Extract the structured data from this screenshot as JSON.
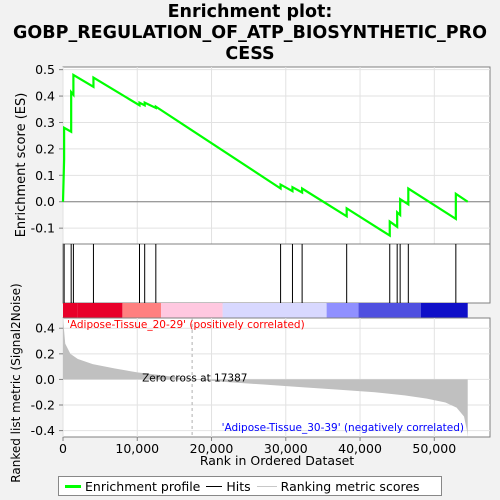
{
  "title_lines": [
    "Enrichment plot:",
    "GOBP_REGULATION_OF_ATP_BIOSYNTHETIC_PRO",
    "CESS"
  ],
  "colors": {
    "enrichment_line": "#00ff00",
    "hits": "#000000",
    "ranking_fill": "#c0c0c0",
    "heat_pos_strong": "#e8002a",
    "heat_pos_mid": "#ff8080",
    "heat_pos_light": "#ffc8e0",
    "heat_neutral": "#d8d8ff",
    "heat_neg_light": "#9090ff",
    "heat_neg_mid": "#5050e0",
    "heat_neg_strong": "#1010c8",
    "annotation_pos": "#ff0000",
    "annotation_neg": "#0000ff"
  },
  "chart_data": {
    "type": "line",
    "x_label": "Rank in Ordered Dataset",
    "es_ylabel": "Enrichment score (ES)",
    "metric_ylabel": "Ranked list metric (Signal2Noise)",
    "xlim": [
      0,
      57500
    ],
    "x_ticks": [
      0,
      10000,
      20000,
      30000,
      40000,
      50000
    ],
    "x_tick_labels": [
      "0",
      "10,000",
      "20,000",
      "30,000",
      "40,000",
      "50,000"
    ],
    "es_ylim": [
      -0.16,
      0.51
    ],
    "es_ticks": [
      -0.1,
      0.0,
      0.1,
      0.2,
      0.3,
      0.4,
      0.5
    ],
    "es_tick_labels": [
      "-0.1",
      "0.0",
      "0.1",
      "0.2",
      "0.3",
      "0.4",
      "0.5"
    ],
    "metric_ylim": [
      -0.45,
      0.48
    ],
    "metric_ticks": [
      -0.4,
      -0.2,
      0.0,
      0.2,
      0.4
    ],
    "metric_tick_labels": [
      "-0.4",
      "-0.2",
      "0.0",
      "0.2",
      "0.4"
    ],
    "hits": [
      150,
      1100,
      1400,
      4100,
      10300,
      11000,
      12500,
      29300,
      30900,
      32200,
      38200,
      44000,
      45000,
      45400,
      46500,
      52900
    ],
    "es_curve": [
      [
        0,
        0.0
      ],
      [
        150,
        0.16
      ],
      [
        150,
        0.28
      ],
      [
        1100,
        0.265
      ],
      [
        1100,
        0.415
      ],
      [
        1400,
        0.405
      ],
      [
        1400,
        0.48
      ],
      [
        4100,
        0.435
      ],
      [
        4100,
        0.47
      ],
      [
        10300,
        0.365
      ],
      [
        10300,
        0.375
      ],
      [
        11000,
        0.365
      ],
      [
        11000,
        0.375
      ],
      [
        12500,
        0.355
      ],
      [
        12500,
        0.36
      ],
      [
        29300,
        0.05
      ],
      [
        29300,
        0.065
      ],
      [
        30900,
        0.04
      ],
      [
        30900,
        0.055
      ],
      [
        32200,
        0.035
      ],
      [
        32200,
        0.05
      ],
      [
        38200,
        -0.055
      ],
      [
        38200,
        -0.025
      ],
      [
        44000,
        -0.128
      ],
      [
        44000,
        -0.075
      ],
      [
        45000,
        -0.095
      ],
      [
        45000,
        -0.04
      ],
      [
        45400,
        -0.05
      ],
      [
        45400,
        0.01
      ],
      [
        46500,
        -0.01
      ],
      [
        46500,
        0.05
      ],
      [
        52900,
        -0.065
      ],
      [
        52900,
        0.03
      ],
      [
        54500,
        0.0
      ]
    ],
    "metric_curve": [
      [
        0,
        0.48
      ],
      [
        300,
        0.28
      ],
      [
        1000,
        0.2
      ],
      [
        2000,
        0.16
      ],
      [
        4000,
        0.12
      ],
      [
        7000,
        0.085
      ],
      [
        10000,
        0.055
      ],
      [
        13000,
        0.035
      ],
      [
        17387,
        0.0
      ],
      [
        22000,
        -0.02
      ],
      [
        27000,
        -0.04
      ],
      [
        32000,
        -0.06
      ],
      [
        37000,
        -0.08
      ],
      [
        42000,
        -0.1
      ],
      [
        46000,
        -0.125
      ],
      [
        49000,
        -0.15
      ],
      [
        51500,
        -0.18
      ],
      [
        53000,
        -0.22
      ],
      [
        54000,
        -0.29
      ],
      [
        54400,
        -0.4
      ],
      [
        54500,
        -0.45
      ]
    ],
    "zero_cross": 17387,
    "zero_cross_label": "Zero cross at 17387",
    "pos_label": "'Adipose-Tissue_20-29' (positively correlated)",
    "neg_label": "'Adipose-Tissue_30-39' (negatively correlated)",
    "heat_segments": [
      {
        "x0": 0,
        "x1": 2000,
        "tone": "heat_pos_strong"
      },
      {
        "x0": 2000,
        "x1": 8000,
        "tone": "heat_pos_strong"
      },
      {
        "x0": 8000,
        "x1": 13200,
        "tone": "heat_pos_mid"
      },
      {
        "x0": 13200,
        "x1": 21500,
        "tone": "heat_pos_light"
      },
      {
        "x0": 21500,
        "x1": 35500,
        "tone": "heat_neutral"
      },
      {
        "x0": 35500,
        "x1": 39800,
        "tone": "heat_neg_light"
      },
      {
        "x0": 39800,
        "x1": 48200,
        "tone": "heat_neg_mid"
      },
      {
        "x0": 48200,
        "x1": 54500,
        "tone": "heat_neg_strong"
      }
    ],
    "legend": [
      "Enrichment profile",
      "Hits",
      "Ranking metric scores"
    ]
  }
}
